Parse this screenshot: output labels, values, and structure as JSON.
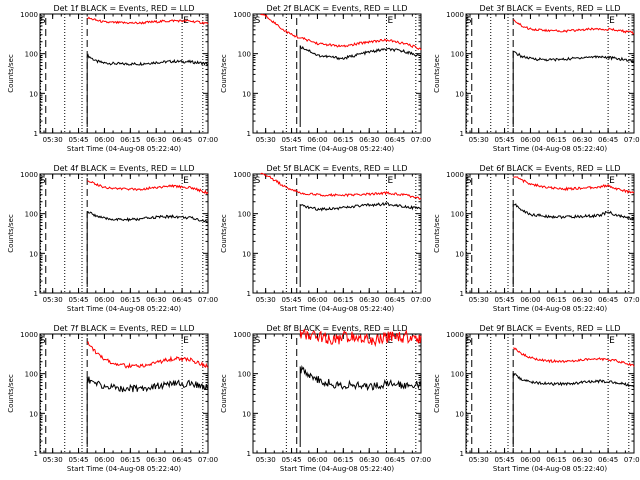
{
  "figure": {
    "ylabel": "Counts/sec",
    "xlabel": "Start Time (04-Aug-08 05:22:40)",
    "xticklabels": [
      "05:30",
      "05:45",
      "06:00",
      "06:15",
      "06:30",
      "06:45",
      "07:00"
    ],
    "yticklabels": [
      "1",
      "10",
      "100",
      "1000"
    ],
    "colors": {
      "events": "#000000",
      "lld": "#ff0000",
      "axes": "#000000",
      "background": "#ffffff"
    }
  },
  "chart_data": [
    {
      "type": "line",
      "title": "Det 1f BLACK = Events, RED = LLD",
      "xlabel": "Start Time (04-Aug-08 05:22:40)",
      "ylabel": "Counts/sec",
      "xlim": [
        "05:22:40",
        "07:00"
      ],
      "ylim": [
        1,
        1000
      ],
      "yscale": "log",
      "grid": false,
      "markers": {
        "S": "05:22",
        "E": "06:45"
      },
      "vlines": {
        "dotted": [
          "05:23",
          "05:37",
          "05:47",
          "06:45",
          "06:57"
        ],
        "dashed": [
          "05:26",
          "05:50"
        ]
      },
      "x": [
        "05:50",
        "05:55",
        "06:00",
        "06:10",
        "06:20",
        "06:30",
        "06:40",
        "06:50",
        "07:00"
      ],
      "series": [
        {
          "name": "Events",
          "values": [
            90,
            65,
            58,
            55,
            55,
            60,
            64,
            62,
            55
          ]
        },
        {
          "name": "LLD",
          "values": [
            800,
            700,
            620,
            600,
            590,
            640,
            680,
            660,
            580
          ]
        }
      ]
    },
    {
      "type": "line",
      "title": "Det 2f BLACK = Events, RED = LLD",
      "xlabel": "Start Time (04-Aug-08 05:22:40)",
      "ylabel": "Counts/sec",
      "xlim": [
        "05:22:40",
        "07:00"
      ],
      "ylim": [
        1,
        1000
      ],
      "yscale": "log",
      "grid": false,
      "markers": {
        "S": "05:23",
        "E": "06:40"
      },
      "vlines": {
        "dotted": [
          "05:42",
          "06:40",
          "06:57"
        ],
        "dashed": [
          "05:48"
        ]
      },
      "x": [
        "05:27",
        "05:30",
        "05:35",
        "05:40",
        "05:45",
        "05:50",
        "06:00",
        "06:15",
        "06:30",
        "06:40",
        "06:50",
        "07:00"
      ],
      "series": [
        {
          "name": "Events",
          "values": [
            null,
            null,
            null,
            null,
            null,
            150,
            90,
            75,
            110,
            130,
            115,
            85
          ]
        },
        {
          "name": "LLD",
          "values": [
            1000,
            900,
            600,
            400,
            300,
            250,
            180,
            150,
            200,
            220,
            180,
            130
          ]
        }
      ]
    },
    {
      "type": "line",
      "title": "Det 3f BLACK = Events, RED = LLD",
      "xlabel": "Start Time (04-Aug-08 05:22:40)",
      "ylabel": "Counts/sec",
      "xlim": [
        "05:22:40",
        "07:00"
      ],
      "ylim": [
        1,
        1000
      ],
      "yscale": "log",
      "grid": false,
      "markers": {
        "S": "05:22",
        "E": "06:45"
      },
      "vlines": {
        "dotted": [
          "05:23",
          "05:37",
          "05:47",
          "06:45",
          "06:57"
        ],
        "dashed": [
          "05:26",
          "05:50"
        ]
      },
      "x": [
        "05:50",
        "05:55",
        "06:00",
        "06:10",
        "06:20",
        "06:30",
        "06:40",
        "06:50",
        "07:00"
      ],
      "series": [
        {
          "name": "Events",
          "values": [
            110,
            85,
            75,
            70,
            72,
            80,
            85,
            75,
            65
          ]
        },
        {
          "name": "LLD",
          "values": [
            700,
            500,
            420,
            380,
            370,
            400,
            430,
            390,
            330
          ]
        }
      ]
    },
    {
      "type": "line",
      "title": "Det 4f BLACK = Events, RED = LLD",
      "xlabel": "Start Time (04-Aug-08 05:22:40)",
      "ylabel": "Counts/sec",
      "xlim": [
        "05:22:40",
        "07:00"
      ],
      "ylim": [
        1,
        1000
      ],
      "yscale": "log",
      "grid": false,
      "markers": {
        "S": "05:22",
        "E": "06:45"
      },
      "vlines": {
        "dotted": [
          "05:23",
          "05:37",
          "05:47",
          "06:45",
          "06:57"
        ],
        "dashed": [
          "05:26",
          "05:50"
        ]
      },
      "x": [
        "05:50",
        "05:55",
        "06:00",
        "06:10",
        "06:20",
        "06:30",
        "06:40",
        "06:50",
        "07:00"
      ],
      "series": [
        {
          "name": "Events",
          "values": [
            110,
            90,
            75,
            70,
            72,
            82,
            85,
            78,
            62
          ]
        },
        {
          "name": "LLD",
          "values": [
            700,
            560,
            460,
            420,
            410,
            460,
            500,
            450,
            330
          ]
        }
      ]
    },
    {
      "type": "line",
      "title": "Det 5f BLACK = Events, RED = LLD",
      "xlabel": "Start Time (04-Aug-08 05:22:40)",
      "ylabel": "Counts/sec",
      "xlim": [
        "05:22:40",
        "07:00"
      ],
      "ylim": [
        1,
        1000
      ],
      "yscale": "log",
      "grid": false,
      "markers": {
        "S": "05:23",
        "E": "06:40"
      },
      "vlines": {
        "dotted": [
          "05:42",
          "06:40",
          "06:57"
        ],
        "dashed": [
          "05:48"
        ]
      },
      "x": [
        "05:27",
        "05:30",
        "05:35",
        "05:40",
        "05:45",
        "05:50",
        "06:00",
        "06:15",
        "06:30",
        "06:40",
        "06:50",
        "07:00"
      ],
      "series": [
        {
          "name": "Events",
          "values": [
            null,
            null,
            null,
            null,
            null,
            160,
            130,
            140,
            165,
            175,
            155,
            130
          ]
        },
        {
          "name": "LLD",
          "values": [
            1000,
            950,
            700,
            500,
            400,
            330,
            300,
            290,
            310,
            330,
            300,
            240
          ]
        }
      ]
    },
    {
      "type": "line",
      "title": "Det 6f BLACK = Events, RED = LLD",
      "xlabel": "Start Time (04-Aug-08 05:22:40)",
      "ylabel": "Counts/sec",
      "xlim": [
        "05:22:40",
        "07:00"
      ],
      "ylim": [
        1,
        1000
      ],
      "yscale": "log",
      "grid": false,
      "markers": {
        "S": "05:22",
        "E": "06:45"
      },
      "vlines": {
        "dotted": [
          "05:23",
          "05:37",
          "05:47",
          "06:45",
          "06:57"
        ],
        "dashed": [
          "05:26",
          "05:50"
        ]
      },
      "x": [
        "05:50",
        "05:55",
        "06:00",
        "06:10",
        "06:20",
        "06:30",
        "06:40",
        "06:45",
        "06:50",
        "07:00"
      ],
      "series": [
        {
          "name": "Events",
          "values": [
            180,
            120,
            95,
            85,
            82,
            85,
            90,
            110,
            90,
            72
          ]
        },
        {
          "name": "LLD",
          "values": [
            900,
            700,
            550,
            450,
            420,
            440,
            470,
            520,
            420,
            330
          ]
        }
      ]
    },
    {
      "type": "line",
      "title": "Det 7f BLACK = Events, RED = LLD",
      "xlabel": "Start Time (04-Aug-08 05:22:40)",
      "ylabel": "Counts/sec",
      "xlim": [
        "05:22:40",
        "07:00"
      ],
      "ylim": [
        1,
        1000
      ],
      "yscale": "log",
      "grid": false,
      "markers": {
        "S": "05:22",
        "E": "06:45"
      },
      "vlines": {
        "dotted": [
          "05:23",
          "05:37",
          "05:47",
          "06:45",
          "06:57"
        ],
        "dashed": [
          "05:26",
          "05:50"
        ]
      },
      "x": [
        "05:50",
        "05:55",
        "06:00",
        "06:10",
        "06:20",
        "06:30",
        "06:40",
        "06:50",
        "07:00"
      ],
      "series": [
        {
          "name": "Events",
          "values": [
            75,
            55,
            48,
            42,
            42,
            48,
            55,
            55,
            45
          ]
        },
        {
          "name": "LLD",
          "values": [
            600,
            350,
            220,
            160,
            150,
            190,
            240,
            220,
            150
          ]
        }
      ]
    },
    {
      "type": "line",
      "title": "Det 8f BLACK = Events, RED = LLD",
      "xlabel": "Start Time (04-Aug-08 05:22:40)",
      "ylabel": "Counts/sec",
      "xlim": [
        "05:22:40",
        "07:00"
      ],
      "ylim": [
        1,
        1000
      ],
      "yscale": "log",
      "grid": false,
      "markers": {
        "S": "05:23",
        "E": "06:40"
      },
      "vlines": {
        "dotted": [
          "05:42",
          "06:40",
          "06:57"
        ],
        "dashed": [
          "05:48"
        ]
      },
      "x": [
        "05:50",
        "06:00",
        "06:10",
        "06:20",
        "06:30",
        "06:40",
        "06:50",
        "07:00"
      ],
      "series": [
        {
          "name": "Events",
          "values": [
            130,
            70,
            52,
            50,
            48,
            55,
            52,
            55
          ]
        },
        {
          "name": "LLD",
          "values": [
            1000,
            900,
            750,
            850,
            700,
            800,
            850,
            780
          ]
        }
      ]
    },
    {
      "type": "line",
      "title": "Det 9f BLACK = Events, RED = LLD",
      "xlabel": "Start Time (04-Aug-08 05:22:40)",
      "ylabel": "Counts/sec",
      "xlim": [
        "05:22:40",
        "07:00"
      ],
      "ylim": [
        1,
        1000
      ],
      "yscale": "log",
      "grid": false,
      "markers": {
        "S": "05:22",
        "E": "06:45"
      },
      "vlines": {
        "dotted": [
          "05:23",
          "05:37",
          "05:47",
          "06:45",
          "06:57"
        ],
        "dashed": [
          "05:26",
          "05:50"
        ]
      },
      "x": [
        "05:50",
        "05:55",
        "06:00",
        "06:10",
        "06:20",
        "06:30",
        "06:40",
        "06:50",
        "07:00"
      ],
      "series": [
        {
          "name": "Events",
          "values": [
            100,
            70,
            62,
            55,
            55,
            60,
            65,
            60,
            48
          ]
        },
        {
          "name": "LLD",
          "values": [
            450,
            320,
            250,
            210,
            200,
            225,
            240,
            210,
            160
          ]
        }
      ]
    }
  ]
}
